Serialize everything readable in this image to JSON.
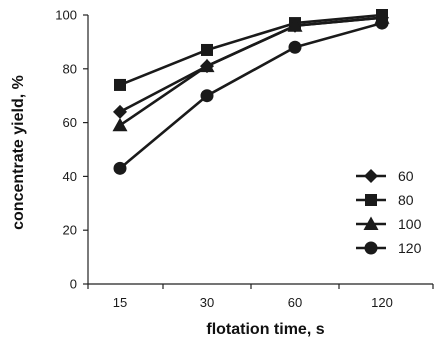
{
  "chart_data": {
    "type": "line",
    "title": "",
    "xlabel": "flotation time, s",
    "ylabel": "concentrate yield, %",
    "categories": [
      "15",
      "30",
      "60",
      "120"
    ],
    "ylim": [
      0,
      100
    ],
    "yticks": [
      "0",
      "20",
      "40",
      "60",
      "80",
      "100"
    ],
    "grid": false,
    "legend_position": "right",
    "series": [
      {
        "name": "60",
        "marker": "diamond",
        "values": [
          64,
          81,
          96,
          99
        ]
      },
      {
        "name": "80",
        "marker": "square",
        "values": [
          74,
          87,
          97,
          100
        ]
      },
      {
        "name": "100",
        "marker": "triangle",
        "values": [
          59,
          81,
          96,
          99
        ]
      },
      {
        "name": "120",
        "marker": "circle",
        "values": [
          43,
          70,
          88,
          97
        ]
      }
    ],
    "colors": {
      "series": "#1a1a1a",
      "axis": "#222222"
    }
  }
}
